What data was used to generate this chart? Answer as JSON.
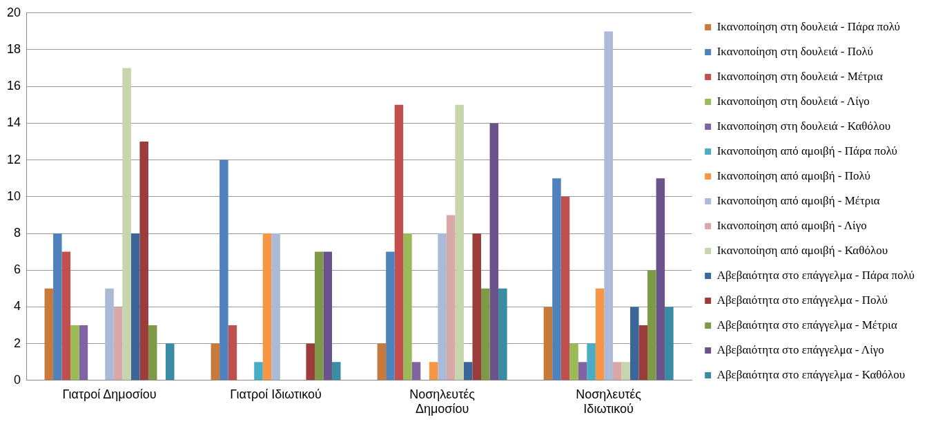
{
  "chart_data": {
    "type": "bar",
    "categories": [
      "Γιατροί Δημοσίου",
      "Γιατροί Ιδιωτικού",
      "Νοσηλευτές Δημοσίου",
      "Νοσηλευτές Ιδιωτικού"
    ],
    "series": [
      {
        "name": "Ικανοποίηση στη δουλειά - Πάρα πολύ",
        "color": "#c87a3a",
        "values": [
          5,
          2,
          2,
          4
        ]
      },
      {
        "name": "Ικανοποίηση στη δουλειά - Πολύ",
        "color": "#4f81bd",
        "values": [
          8,
          12,
          7,
          11
        ]
      },
      {
        "name": "Ικανοποίηση στη δουλειά - Μέτρια",
        "color": "#c0504d",
        "values": [
          7,
          3,
          15,
          10
        ]
      },
      {
        "name": "Ικανοποίηση στη δουλειά - Λίγο",
        "color": "#9bbb59",
        "values": [
          3,
          0,
          8,
          2
        ]
      },
      {
        "name": "Ικανοποίηση στη δουλειά - Καθόλου",
        "color": "#8064a2",
        "values": [
          3,
          0,
          1,
          1
        ]
      },
      {
        "name": "Ικανοποίηση από αμοιβή - Πάρα πολύ",
        "color": "#4bacc6",
        "values": [
          0,
          1,
          0,
          2
        ]
      },
      {
        "name": "Ικανοποίηση από αμοιβή - Πολύ",
        "color": "#f79646",
        "values": [
          0,
          8,
          1,
          5
        ]
      },
      {
        "name": "Ικανοποίηση από αμοιβή - Μέτρια",
        "color": "#aabad7",
        "values": [
          5,
          8,
          8,
          19
        ]
      },
      {
        "name": "Ικανοποίηση από αμοιβή - Λίγο",
        "color": "#d9a9a8",
        "values": [
          4,
          0,
          9,
          1
        ]
      },
      {
        "name": "Ικανοποίηση από αμοιβή - Καθόλου",
        "color": "#c6d5ab",
        "values": [
          17,
          0,
          15,
          1
        ]
      },
      {
        "name": "Αβεβαιότητα στο επάγγελμα - Πάρα πολύ",
        "color": "#3c6698",
        "values": [
          8,
          0,
          1,
          4
        ]
      },
      {
        "name": "Αβεβαιότητα στο επάγγελμα - Πολύ",
        "color": "#9c3d3b",
        "values": [
          13,
          2,
          8,
          3
        ]
      },
      {
        "name": "Αβεβαιότητα στο επάγγελμα - Μέτρια",
        "color": "#7e9a48",
        "values": [
          3,
          7,
          5,
          6
        ]
      },
      {
        "name": "Αβεβαιότητα στο επάγγελμα - Λίγο",
        "color": "#6a528a",
        "values": [
          0,
          7,
          14,
          11
        ]
      },
      {
        "name": "Αβεβαιότητα στο επάγγελμα - Καθόλου",
        "color": "#3a8ca3",
        "values": [
          2,
          1,
          5,
          4
        ]
      }
    ],
    "ylim": [
      0,
      20
    ],
    "yticks": [
      0,
      2,
      4,
      6,
      8,
      10,
      12,
      14,
      16,
      18,
      20
    ],
    "grid": "y",
    "legend": "right"
  }
}
